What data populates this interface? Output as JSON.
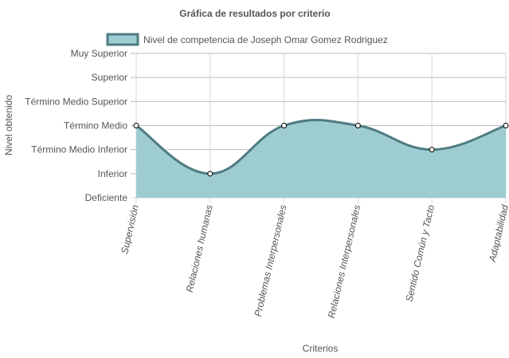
{
  "chart_data": {
    "type": "area",
    "title": "Gráfica de resultados por criterio",
    "xlabel": "Criterios",
    "ylabel": "Nivel obtenido",
    "y_levels": [
      "Deficiente",
      "Inferior",
      "Término Medio Inferior",
      "Término Medio",
      "Término Medio Superior",
      "Superior",
      "Muy Superior"
    ],
    "categories": [
      "Supervisión",
      "Relaciones humanas",
      "Problemas Interpersonales",
      "Relaciones Interpersonales",
      "Sentido Común y Tacto",
      "Adaptabilidad"
    ],
    "series": [
      {
        "name": "Nivel de competencia de Joseph Omar Gomez Rodriguez",
        "values": [
          "Término Medio",
          "Inferior",
          "Término Medio",
          "Término Medio",
          "Término Medio Inferior",
          "Término Medio"
        ],
        "line_color": "#4f7b82",
        "fill_color": "#9ecdd1"
      }
    ],
    "legend_position": "top",
    "grid": true
  }
}
